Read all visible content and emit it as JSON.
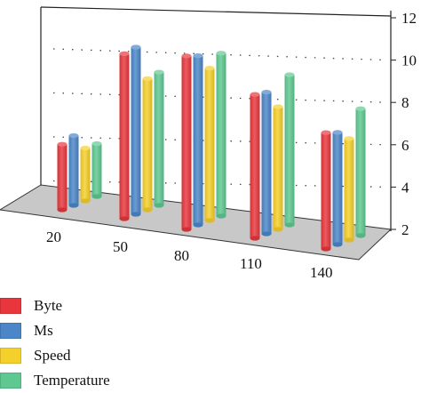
{
  "chart_data": {
    "type": "bar",
    "categories": [
      "20",
      "50",
      "80",
      "110",
      "140"
    ],
    "series": [
      {
        "name": "Byte",
        "color": "#e8363c",
        "values": [
          5.1,
          9.8,
          10.2,
          8.8,
          7.5
        ]
      },
      {
        "name": "Ms",
        "color": "#4a86c8",
        "values": [
          5.3,
          9.9,
          10.0,
          8.7,
          7.3
        ]
      },
      {
        "name": "Speed",
        "color": "#f5cf2a",
        "values": [
          4.5,
          8.2,
          9.2,
          7.8,
          6.8
        ]
      },
      {
        "name": "Temperature",
        "color": "#5ec890",
        "values": [
          4.5,
          8.3,
          9.7,
          9.1,
          8.0
        ]
      }
    ],
    "yticks": [
      "2",
      "4",
      "6",
      "8",
      "10",
      "12"
    ],
    "ylim": [
      2,
      12
    ],
    "legend_position": "bottom-left",
    "grid": true
  }
}
